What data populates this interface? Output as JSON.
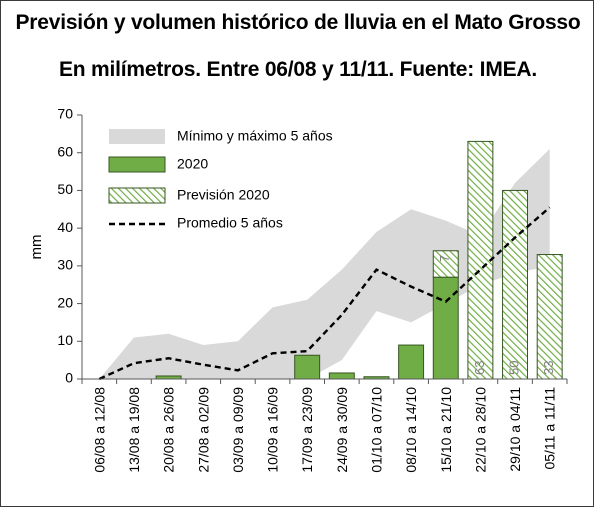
{
  "chart_data": {
    "type": "bar",
    "title": "Previsión y volumen histórico de lluvia en el Mato Grosso",
    "subtitle": "En milímetros. Entre 06/08 y 11/11. Fuente: IMEA.",
    "ylabel": "mm",
    "xlabel": "",
    "ylim": [
      0,
      70
    ],
    "yticks": [
      0,
      10,
      20,
      30,
      40,
      50,
      60,
      70
    ],
    "grid": false,
    "legend_position": "top-left",
    "categories": [
      "06/08 a 12/08",
      "13/08 a 19/08",
      "20/08 a 26/08",
      "27/08 a 02/09",
      "03/09 a 09/09",
      "10/09 a 16/09",
      "17/09 a 23/09",
      "24/09 a 30/09",
      "01/10 a 07/10",
      "08/10 a 14/10",
      "15/10 a 21/10",
      "22/10 a 28/10",
      "29/10 a 04/11",
      "05/11 a 11/11"
    ],
    "series": [
      {
        "name": "Mínimo y máximo 5 años",
        "kind": "range",
        "color": "#d9d9d9",
        "min": [
          0,
          0,
          0,
          0,
          0,
          0,
          0,
          5,
          18,
          15,
          20,
          25,
          28,
          30
        ],
        "max": [
          0,
          11,
          12,
          9,
          10,
          19,
          21,
          29,
          39,
          45,
          42,
          38,
          52,
          61
        ]
      },
      {
        "name": "2020",
        "kind": "bar",
        "color": "#70ad47",
        "values": [
          0,
          0,
          0.8,
          0,
          0,
          0,
          6.3,
          1.6,
          0.6,
          9,
          27,
          null,
          null,
          null
        ]
      },
      {
        "name": "Previsión 2020",
        "kind": "bar_hatched",
        "color": "#70ad47",
        "values": [
          null,
          null,
          null,
          null,
          null,
          null,
          null,
          null,
          null,
          null,
          7,
          63,
          50,
          33
        ]
      },
      {
        "name": "Promedio 5 años",
        "kind": "line_dashed",
        "color": "#000000",
        "values": [
          0,
          4.2,
          5.5,
          3.8,
          2.3,
          6.8,
          7.4,
          17,
          29,
          24.5,
          20.5,
          29,
          37.5,
          45.5
        ]
      }
    ],
    "data_labels": [
      {
        "category_index": 10,
        "text": "7"
      },
      {
        "category_index": 11,
        "text": "63"
      },
      {
        "category_index": 12,
        "text": "50"
      },
      {
        "category_index": 13,
        "text": "33"
      }
    ]
  }
}
